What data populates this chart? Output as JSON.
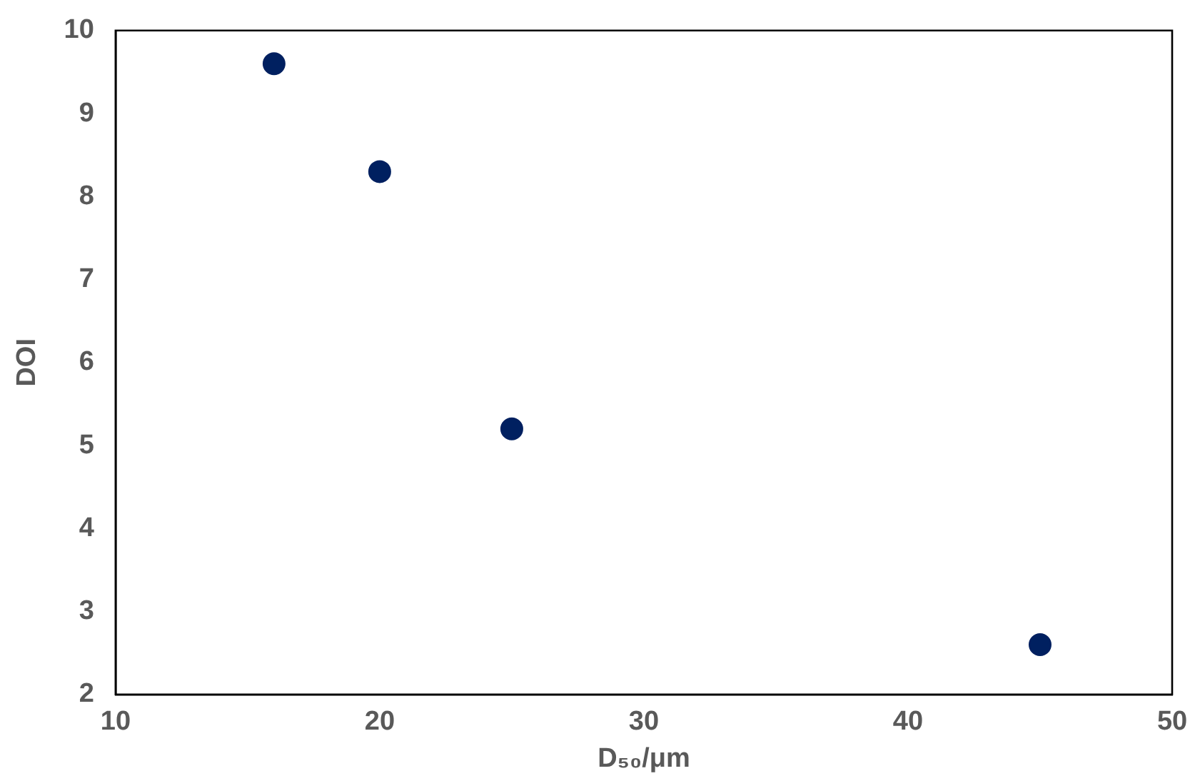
{
  "chart_data": {
    "type": "scatter",
    "xlabel": "D₅₀/μm",
    "ylabel": "DOI",
    "x": [
      16,
      20,
      25,
      45
    ],
    "series": [
      {
        "color": "#002060",
        "values": [
          9.6,
          8.3,
          5.2,
          2.6
        ]
      }
    ],
    "xlim": [
      10,
      50
    ],
    "xticks": [
      10,
      20,
      30,
      40,
      50
    ],
    "ylim": [
      2,
      10
    ],
    "yticks": [
      2,
      3,
      4,
      5,
      6,
      7,
      8,
      9,
      10
    ],
    "grid": false,
    "legend": false,
    "marker": "circle"
  }
}
